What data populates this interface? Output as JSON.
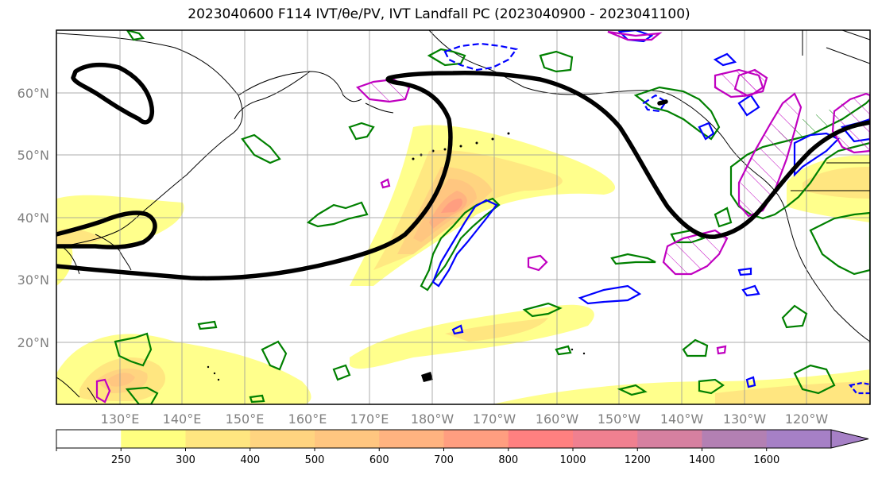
{
  "title": "2023040600 F114 IVT/θe/PV, IVT Landfall PC (2023040900 - 2023041100)",
  "map": {
    "lat_labels": [
      "60°N",
      "50°N",
      "40°N",
      "30°N",
      "20°N"
    ],
    "lon_labels": [
      "130°E",
      "140°E",
      "150°E",
      "160°E",
      "170°E",
      "180°W",
      "170°W",
      "160°W",
      "150°W",
      "140°W",
      "130°W",
      "120°W"
    ]
  },
  "colorbar": {
    "ticks": [
      "250",
      "300",
      "400",
      "500",
      "600",
      "700",
      "800",
      "1000",
      "1200",
      "1400",
      "1600"
    ],
    "colors": [
      "#ffffff",
      "#ffff80",
      "#ffe680",
      "#ffd480",
      "#ffc680",
      "#ffb380",
      "#ff9e80",
      "#ff8080",
      "#f08090",
      "#d680a0",
      "#b380b3",
      "#a680c6"
    ]
  },
  "colors": {
    "ivt_fill": "#ffe680",
    "ivt_core": "#ff9e80",
    "theta_e_contour": "#000000",
    "pv_positive": "#008000",
    "pv_negative": "#0000ff",
    "landfall_pc": "#c000c0"
  }
}
